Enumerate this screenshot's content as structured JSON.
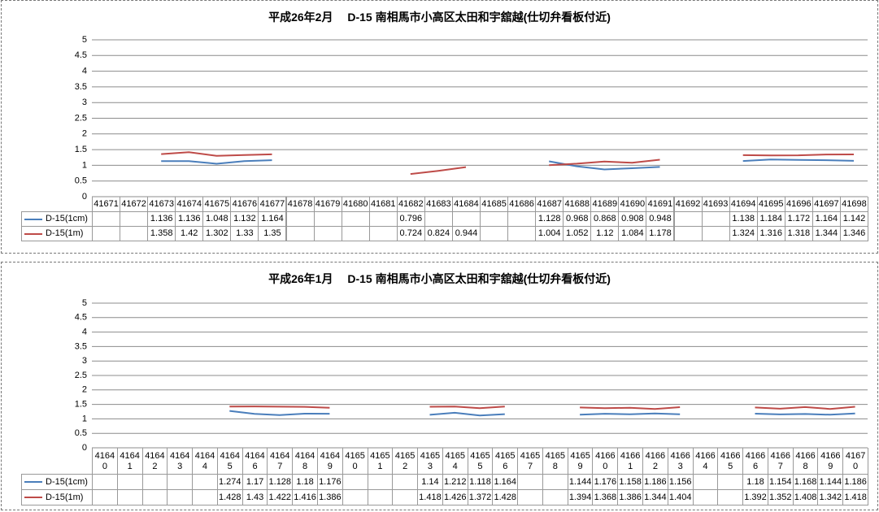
{
  "chart_data": [
    {
      "type": "line",
      "title": "平成26年2月　 D-15 南相馬市小高区太田和宇舘越(仕切弁看板付近)",
      "categories": [
        "41671",
        "41672",
        "41673",
        "41674",
        "41675",
        "41676",
        "41677",
        "41678",
        "41679",
        "41680",
        "41681",
        "41682",
        "41683",
        "41684",
        "41685",
        "41686",
        "41687",
        "41688",
        "41689",
        "41690",
        "41691",
        "41692",
        "41693",
        "41694",
        "41695",
        "41696",
        "41697",
        "41698"
      ],
      "series": [
        {
          "name": "D-15(1cm)",
          "color": "#4a7ebb",
          "values": [
            null,
            null,
            1.136,
            1.136,
            1.048,
            1.132,
            1.164,
            null,
            null,
            null,
            null,
            0.796,
            null,
            null,
            null,
            null,
            1.128,
            0.968,
            0.868,
            0.908,
            0.948,
            null,
            null,
            1.138,
            1.184,
            1.172,
            1.164,
            1.142
          ]
        },
        {
          "name": "D-15(1m)",
          "color": "#be4b48",
          "values": [
            null,
            null,
            1.358,
            1.42,
            1.302,
            1.33,
            1.35,
            null,
            null,
            null,
            null,
            0.724,
            0.824,
            0.944,
            null,
            null,
            1.004,
            1.052,
            1.12,
            1.084,
            1.178,
            null,
            null,
            1.324,
            1.316,
            1.318,
            1.344,
            1.346
          ]
        }
      ],
      "ylim": [
        0,
        5
      ],
      "yticks": [
        0,
        0.5,
        1,
        1.5,
        2,
        2.5,
        3,
        3.5,
        4,
        4.5,
        5
      ],
      "grid": true
    },
    {
      "type": "line",
      "title": "平成26年1月　 D-15 南相馬市小高区太田和宇舘越(仕切弁看板付近)",
      "categories": [
        "41640",
        "41641",
        "41642",
        "41643",
        "41644",
        "41645",
        "41646",
        "41647",
        "41648",
        "41649",
        "41650",
        "41651",
        "41652",
        "41653",
        "41654",
        "41655",
        "41656",
        "41657",
        "41658",
        "41659",
        "41660",
        "41661",
        "41662",
        "41663",
        "41664",
        "41665",
        "41666",
        "41667",
        "41668",
        "41669",
        "41670"
      ],
      "series": [
        {
          "name": "D-15(1cm)",
          "color": "#4a7ebb",
          "values": [
            null,
            null,
            null,
            null,
            null,
            1.274,
            1.17,
            1.128,
            1.18,
            1.176,
            null,
            null,
            null,
            1.14,
            1.212,
            1.118,
            1.164,
            null,
            null,
            1.144,
            1.176,
            1.158,
            1.186,
            1.156,
            null,
            null,
            1.18,
            1.154,
            1.168,
            1.144,
            1.186
          ]
        },
        {
          "name": "D-15(1m)",
          "color": "#be4b48",
          "values": [
            null,
            null,
            null,
            null,
            null,
            1.428,
            1.43,
            1.422,
            1.416,
            1.386,
            null,
            null,
            null,
            1.418,
            1.426,
            1.372,
            1.428,
            null,
            null,
            1.394,
            1.368,
            1.386,
            1.344,
            1.404,
            null,
            null,
            1.392,
            1.352,
            1.408,
            1.342,
            1.418
          ]
        }
      ],
      "ylim": [
        0,
        5
      ],
      "yticks": [
        0,
        0.5,
        1,
        1.5,
        2,
        2.5,
        3,
        3.5,
        4,
        4.5,
        5
      ],
      "grid": true
    }
  ]
}
